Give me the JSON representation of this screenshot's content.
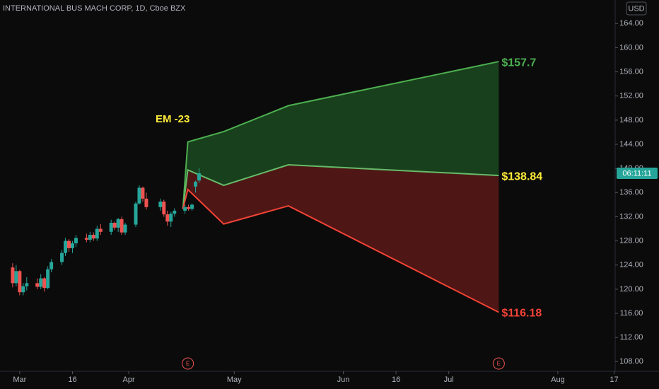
{
  "chart_data": {
    "type": "candlestick",
    "title": "INTERNATIONAL BUS MACH CORP, 1D, Cboe BZX",
    "currency": "USD",
    "countdown": "06:11:11",
    "annotation": "EM -23",
    "x": [
      -2,
      -1,
      0,
      1,
      2,
      5,
      6,
      7,
      8,
      9,
      12,
      13,
      14,
      15,
      16,
      19,
      20,
      21,
      22,
      23,
      26,
      27,
      28,
      29,
      30,
      33,
      34,
      35,
      36,
      40,
      41,
      42,
      43,
      44,
      47,
      48,
      49,
      50,
      51
    ],
    "open": [
      123.6,
      121.0,
      123.0,
      119.5,
      120.5,
      121.0,
      120.4,
      121.8,
      120.2,
      123.3,
      124.5,
      126.0,
      128.0,
      126.8,
      127.6,
      128.5,
      128.2,
      129.0,
      128.4,
      130.0,
      129.5,
      131.0,
      130.2,
      131.6,
      129.4,
      130.7,
      134.2,
      136.8,
      135.0,
      133.6,
      134.5,
      132.4,
      131.2,
      132.5,
      133.0,
      133.6,
      133.3,
      137.0,
      138.0
    ],
    "high": [
      124.3,
      124.0,
      123.2,
      121.0,
      122.0,
      121.8,
      122.5,
      122.0,
      123.8,
      125.0,
      126.5,
      128.5,
      128.3,
      128.0,
      129.0,
      129.2,
      129.5,
      129.4,
      130.5,
      130.8,
      131.5,
      131.2,
      131.8,
      132.0,
      131.0,
      134.5,
      137.2,
      137.0,
      136.0,
      135.0,
      134.8,
      133.0,
      132.8,
      133.4,
      134.0,
      134.0,
      134.2,
      138.0,
      140.0
    ],
    "low": [
      120.3,
      120.5,
      119.0,
      119.0,
      119.8,
      120.0,
      120.0,
      119.6,
      120.0,
      122.8,
      124.0,
      125.5,
      126.2,
      126.0,
      127.0,
      127.8,
      127.8,
      128.0,
      128.0,
      129.0,
      129.0,
      129.8,
      129.5,
      129.0,
      129.0,
      130.3,
      134.0,
      134.5,
      133.2,
      133.0,
      132.0,
      130.5,
      130.3,
      132.0,
      132.5,
      133.0,
      133.0,
      136.0,
      137.6
    ],
    "close": [
      121.0,
      123.0,
      119.5,
      120.5,
      121.0,
      120.4,
      121.8,
      120.2,
      123.3,
      124.5,
      126.0,
      128.0,
      126.8,
      127.6,
      128.5,
      128.2,
      129.0,
      128.4,
      130.0,
      129.5,
      131.0,
      130.2,
      131.6,
      129.4,
      130.7,
      134.2,
      136.8,
      135.0,
      133.6,
      134.5,
      132.4,
      131.2,
      132.5,
      133.0,
      133.6,
      133.3,
      134.0,
      137.8,
      139.2
    ],
    "up_color": "#26a69a",
    "down_color": "#ef5350",
    "bands": [
      {
        "color": "#4caf50",
        "fill": "#1c4a20",
        "label": "$157.7",
        "label_color": "#4caf50",
        "x": [
          46.4,
          47.8,
          58,
          76.4,
          136.2
        ],
        "values": [
          133.3,
          144.4,
          146.1,
          150.4,
          157.7
        ]
      },
      {
        "color": "#66bb6a",
        "fill": "#5a1a18",
        "label": "$138.84",
        "label_color": "#ffeb3b",
        "x": [
          46.4,
          47.8,
          58,
          76.4,
          136.2
        ],
        "values": [
          133.3,
          139.75,
          137.2,
          140.6,
          138.84
        ]
      },
      {
        "color": "#f44336",
        "label": "$116.18",
        "label_color": "#f44336",
        "x": [
          46.4,
          47.8,
          58,
          76.4,
          136.2
        ],
        "values": [
          133.3,
          136.5,
          130.8,
          133.8,
          116.18
        ]
      }
    ],
    "earnings": {
      "label": "E",
      "x": [
        47.8,
        136.2
      ]
    },
    "xlim": [
      -5.6,
      169.3
    ],
    "ylim": [
      106.4,
      167.9
    ],
    "xticks": [
      {
        "value": 0,
        "label": "Mar"
      },
      {
        "value": 15,
        "label": "16"
      },
      {
        "value": 31,
        "label": "Apr"
      },
      {
        "value": 61,
        "label": "May"
      },
      {
        "value": 92,
        "label": "Jun"
      },
      {
        "value": 107,
        "label": "16"
      },
      {
        "value": 122,
        "label": "Jul"
      },
      {
        "value": 153,
        "label": "Aug"
      },
      {
        "value": 169,
        "label": "17"
      }
    ],
    "yticks": [
      {
        "value": 108,
        "label": "108.00"
      },
      {
        "value": 112,
        "label": "112.00"
      },
      {
        "value": 116,
        "label": "116.00"
      },
      {
        "value": 120,
        "label": "120.00"
      },
      {
        "value": 124,
        "label": "124.00"
      },
      {
        "value": 128,
        "label": "128.00"
      },
      {
        "value": 132,
        "label": "132.00"
      },
      {
        "value": 136,
        "label": "136.00"
      },
      {
        "value": 140,
        "label": "140.00"
      },
      {
        "value": 144,
        "label": "144.00"
      },
      {
        "value": 148,
        "label": "148.00"
      },
      {
        "value": 152,
        "label": "152.00"
      },
      {
        "value": 156,
        "label": "156.00"
      },
      {
        "value": 160,
        "label": "160.00"
      },
      {
        "value": 164,
        "label": "164.00"
      }
    ],
    "grid": false
  }
}
